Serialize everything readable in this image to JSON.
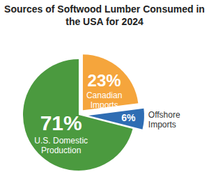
{
  "chart_data": {
    "type": "pie",
    "title": "Sources of Softwood Lumber Consumed in the USA for 2024",
    "categories": [
      "U.S. Domestic Production",
      "Canadian Imports",
      "Offshore Imports"
    ],
    "values": [
      71,
      23,
      6
    ],
    "value_labels": [
      "71%",
      "23%",
      "6%"
    ],
    "colors": [
      "#4b9a3f",
      "#f5a53c",
      "#2f6db3"
    ],
    "data_labels": true
  }
}
